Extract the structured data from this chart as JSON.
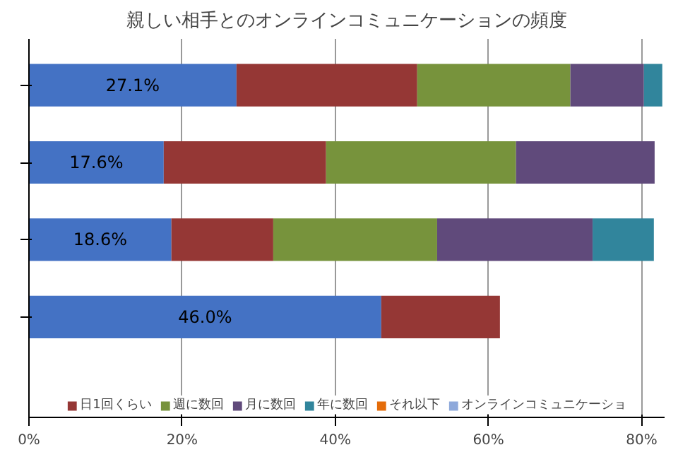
{
  "chart_data": {
    "type": "bar",
    "orientation": "horizontal",
    "stacked": true,
    "title": "親しい相手とのオンラインコミュニケーションの頻度",
    "categories": [
      null,
      null,
      null,
      null
    ],
    "series": [
      {
        "color": "#4472c4",
        "values": [
          27.1,
          17.6,
          18.6,
          46.0
        ],
        "value_labels": [
          "27.1%",
          "17.6%",
          "18.6%",
          "46.0%"
        ]
      },
      {
        "name": "日1回くらい",
        "color": "#953735",
        "values": [
          23.6,
          21.2,
          13.3,
          15.5
        ]
      },
      {
        "name": "週に数回",
        "color": "#77933c",
        "values": [
          20.0,
          24.8,
          21.4,
          null
        ]
      },
      {
        "name": "月に数回",
        "color": "#604a7b",
        "values": [
          9.6,
          18.1,
          20.3,
          null
        ]
      },
      {
        "name": "年に数回",
        "color": "#31859c",
        "values": [
          2.4,
          null,
          8.0,
          null
        ]
      },
      {
        "name": "それ以下",
        "color": "#e46c0a",
        "values": [
          null,
          null,
          null,
          null
        ]
      },
      {
        "name": "オンラインコミュニケーショ",
        "color": "#8ea9db",
        "values": [
          null,
          null,
          null,
          null
        ]
      }
    ],
    "xlim": [
      0,
      83
    ],
    "xticks": [
      {
        "value": 0,
        "label": "0%"
      },
      {
        "value": 20,
        "label": "20%"
      },
      {
        "value": 40,
        "label": "40%"
      },
      {
        "value": 60,
        "label": "60%"
      },
      {
        "value": 80,
        "label": "80%"
      }
    ],
    "grid": "x",
    "legend": "bottom"
  }
}
